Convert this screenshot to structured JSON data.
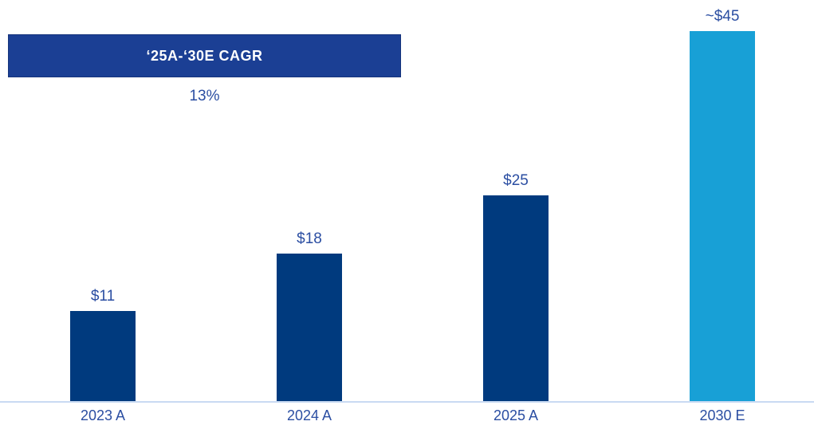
{
  "cagr": {
    "banner_label": "‘25A-‘30E CAGR",
    "value": "13%"
  },
  "chart_data": {
    "type": "bar",
    "title": "",
    "xlabel": "",
    "ylabel": "",
    "categories": [
      "2023 A",
      "2024 A",
      "2025 A",
      "2030 E"
    ],
    "values": [
      11,
      18,
      25,
      45
    ],
    "value_labels": [
      "$11",
      "$18",
      "$25",
      "~$45"
    ],
    "ylim": [
      0,
      48
    ],
    "grid": false,
    "legend_position": "none",
    "annotations": [
      {
        "label": "‘25A-‘30E CAGR",
        "value": "13%"
      }
    ],
    "bar_colors": [
      "#003A7E",
      "#003A7E",
      "#003A7E",
      "#18A0D6"
    ]
  },
  "colors": {
    "bar_actual": "#003A7E",
    "bar_estimate": "#18A0D6",
    "banner_bg": "#1B3F94",
    "banner_text": "#FFFFFF",
    "label_text": "#2B4EA2",
    "axis_line": "#C9DAF2"
  }
}
